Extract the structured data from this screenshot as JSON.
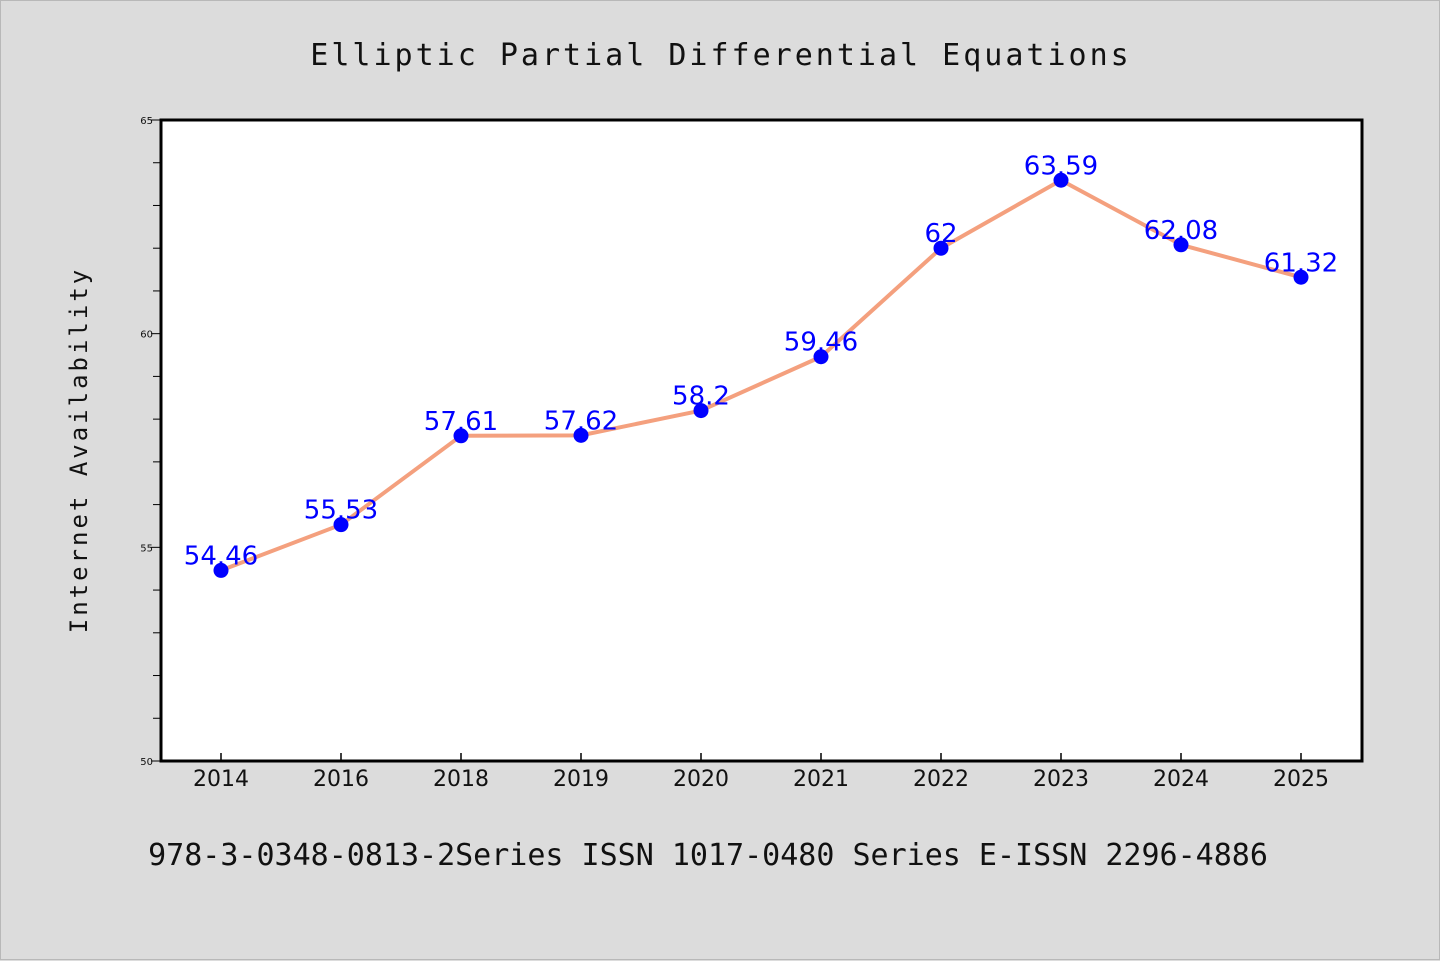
{
  "colors": {
    "background": "#dcdcdc",
    "plot_background": "#ffffff",
    "line": "#f4a07e",
    "marker": "#0000ff",
    "data_label": "#0000ff",
    "axis": "#000000"
  },
  "footer": "978-3-0348-0813-2Series ISSN 1017-0480 Series E-ISSN 2296-4886",
  "chart_data": {
    "type": "line",
    "title": "Elliptic Partial Differential Equations",
    "xlabel": "",
    "ylabel": "Internet Availability",
    "categories": [
      "2014",
      "2016",
      "2018",
      "2019",
      "2020",
      "2021",
      "2022",
      "2023",
      "2024",
      "2025"
    ],
    "series": [
      {
        "values": [
          54.46,
          55.53,
          57.61,
          57.62,
          58.2,
          59.46,
          62,
          63.59,
          62.08,
          61.32
        ],
        "labels": [
          "54.46",
          "55.53",
          "57.61",
          "57.62",
          "58.2",
          "59.46",
          "62",
          "63.59",
          "62.08",
          "61.32"
        ]
      }
    ],
    "ylim": [
      50,
      65
    ],
    "yticks": [
      "50",
      "55",
      "60",
      "65"
    ],
    "y_minor_step": 1,
    "grid": false,
    "legend": "none"
  }
}
